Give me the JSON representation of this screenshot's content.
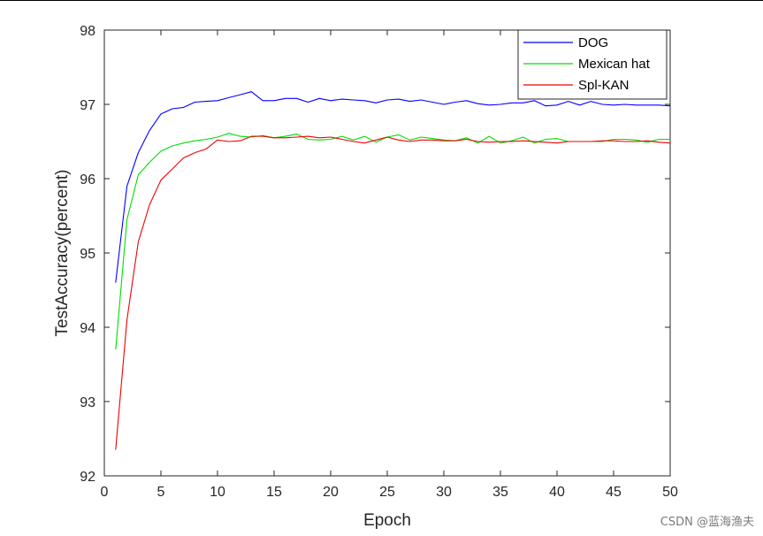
{
  "chart_data": {
    "type": "line",
    "title": "",
    "xlabel": "Epoch",
    "ylabel": "TestAccuracy(percent)",
    "xlim": [
      0,
      50
    ],
    "ylim": [
      92,
      98
    ],
    "xticks": [
      0,
      5,
      10,
      15,
      20,
      25,
      30,
      35,
      40,
      45,
      50
    ],
    "yticks": [
      92,
      93,
      94,
      95,
      96,
      97,
      98
    ],
    "grid": false,
    "legend_position": "top-right",
    "x": [
      1,
      2,
      3,
      4,
      5,
      6,
      7,
      8,
      9,
      10,
      11,
      12,
      13,
      14,
      15,
      16,
      17,
      18,
      19,
      20,
      21,
      22,
      23,
      24,
      25,
      26,
      27,
      28,
      29,
      30,
      31,
      32,
      33,
      34,
      35,
      36,
      37,
      38,
      39,
      40,
      41,
      42,
      43,
      44,
      45,
      46,
      47,
      48,
      49,
      50
    ],
    "series": [
      {
        "name": "DOG",
        "color": "#0000ff",
        "values": [
          94.6,
          95.9,
          96.35,
          96.65,
          96.87,
          96.94,
          96.96,
          97.03,
          97.04,
          97.05,
          97.09,
          97.13,
          97.17,
          97.05,
          97.05,
          97.08,
          97.08,
          97.03,
          97.08,
          97.05,
          97.07,
          97.06,
          97.05,
          97.02,
          97.06,
          97.07,
          97.04,
          97.06,
          97.03,
          97.0,
          97.03,
          97.05,
          97.01,
          96.99,
          97.0,
          97.02,
          97.02,
          97.05,
          96.98,
          96.99,
          97.04,
          96.99,
          97.04,
          97.0,
          96.99,
          97.0,
          96.99,
          96.99,
          96.99,
          96.98
        ]
      },
      {
        "name": "Mexican hat",
        "color": "#00dd00",
        "values": [
          93.7,
          95.45,
          96.05,
          96.22,
          96.37,
          96.44,
          96.48,
          96.51,
          96.53,
          96.56,
          96.61,
          96.57,
          96.56,
          96.58,
          96.55,
          96.57,
          96.6,
          96.53,
          96.52,
          96.53,
          96.57,
          96.52,
          96.57,
          96.49,
          96.56,
          96.59,
          96.52,
          96.56,
          96.54,
          96.52,
          96.51,
          96.55,
          96.48,
          96.57,
          96.48,
          96.51,
          96.56,
          96.48,
          96.53,
          96.54,
          96.5,
          96.5,
          96.5,
          96.5,
          96.53,
          96.53,
          96.52,
          96.49,
          96.53,
          96.53
        ]
      },
      {
        "name": "Spl-KAN",
        "color": "#ee0000",
        "values": [
          92.35,
          94.1,
          95.15,
          95.65,
          95.98,
          96.13,
          96.28,
          96.35,
          96.4,
          96.52,
          96.5,
          96.51,
          96.57,
          96.57,
          96.55,
          96.55,
          96.56,
          96.57,
          96.55,
          96.56,
          96.53,
          96.5,
          96.48,
          96.52,
          96.56,
          96.52,
          96.5,
          96.52,
          96.52,
          96.51,
          96.51,
          96.53,
          96.5,
          96.49,
          96.5,
          96.5,
          96.51,
          96.5,
          96.49,
          96.48,
          96.5,
          96.5,
          96.5,
          96.51,
          96.51,
          96.5,
          96.5,
          96.51,
          96.49,
          96.48
        ]
      }
    ]
  },
  "watermark": "CSDN @蓝海渔夫"
}
